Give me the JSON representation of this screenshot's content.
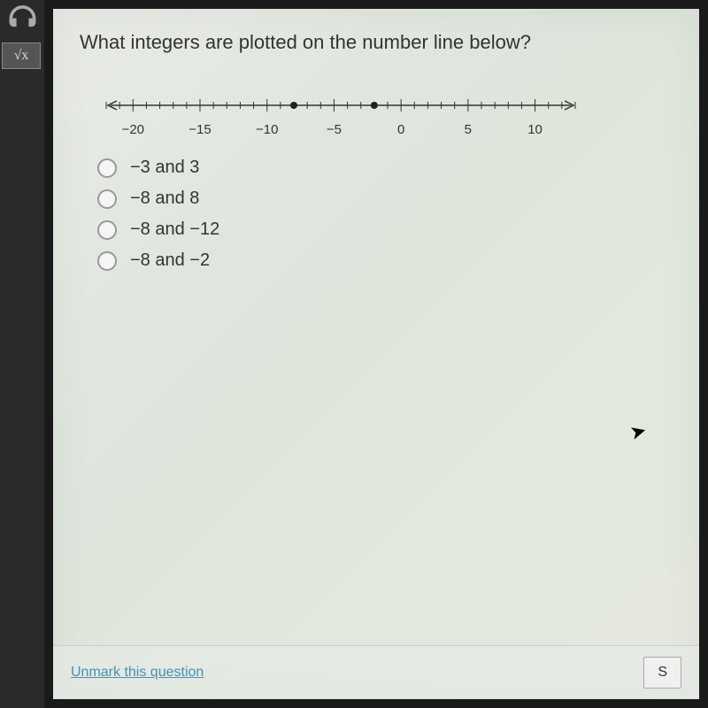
{
  "question": {
    "text": "What integers are plotted on the number line below?"
  },
  "numberLine": {
    "min": -22,
    "max": 13,
    "tickStep": 1,
    "labelStep": 5,
    "labels": [
      -20,
      -15,
      -10,
      -5,
      0,
      5,
      10
    ],
    "points": [
      -8,
      -2
    ],
    "lineColor": "#333333",
    "pointColor": "#222222",
    "pointRadius": 4
  },
  "options": [
    {
      "label": "−3 and 3"
    },
    {
      "label": "−8 and 8"
    },
    {
      "label": "−8 and −12"
    },
    {
      "label": "−8 and −2"
    }
  ],
  "footer": {
    "unmarkLabel": "Unmark this question",
    "saveLabel": "S"
  },
  "sidebar": {
    "sqrtLabel": "√x"
  }
}
